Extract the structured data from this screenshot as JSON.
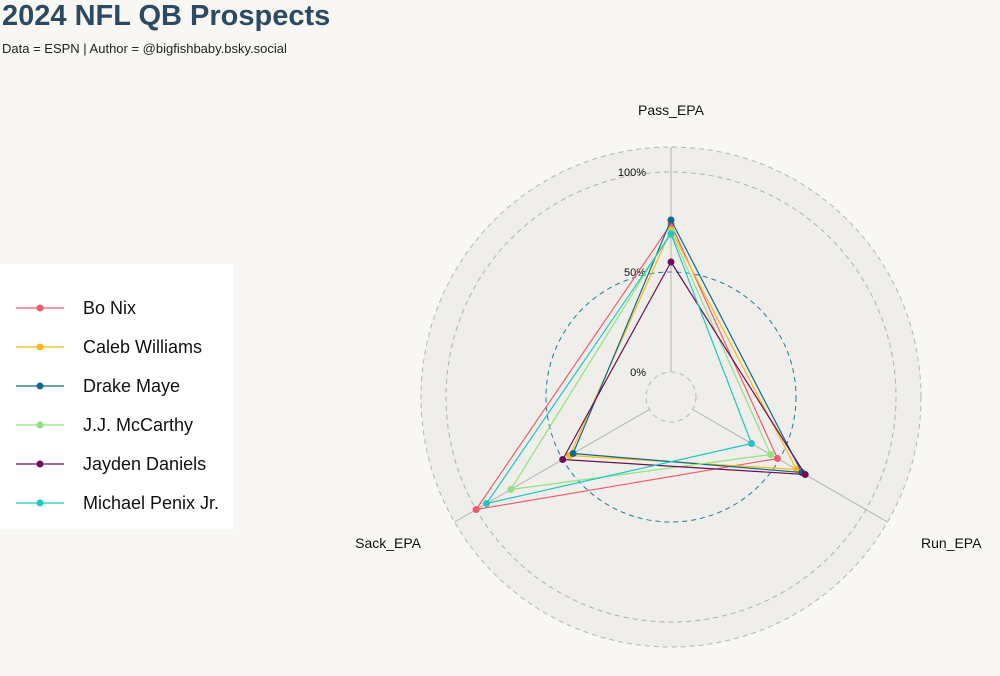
{
  "title": "2024 NFL QB Prospects",
  "subtitle": "Data = ESPN | Author = @bigfishbaby.bsky.social",
  "chart_data": {
    "type": "radar",
    "axes": [
      "Pass_EPA",
      "Run_EPA",
      "Sack_EPA"
    ],
    "tick_labels": [
      "0%",
      "50%",
      "100%"
    ],
    "range": [
      0,
      100
    ],
    "grid": true,
    "legend_position": "left",
    "series": [
      {
        "name": "Bo Nix",
        "color": "#ef5d6a",
        "values": [
          74,
          49,
          100
        ]
      },
      {
        "name": "Caleb Williams",
        "color": "#fdb813",
        "values": [
          71,
          60,
          46
        ]
      },
      {
        "name": "Drake Maye",
        "color": "#0e6b8a",
        "values": [
          76,
          63,
          44
        ]
      },
      {
        "name": "J.J. McCarthy",
        "color": "#90e27f",
        "values": [
          70,
          45,
          80
        ]
      },
      {
        "name": "Jayden Daniels",
        "color": "#6b0f57",
        "values": [
          55,
          65,
          50
        ]
      },
      {
        "name": "Michael Penix Jr.",
        "color": "#20c8c0",
        "values": [
          69,
          34,
          94
        ]
      }
    ]
  }
}
